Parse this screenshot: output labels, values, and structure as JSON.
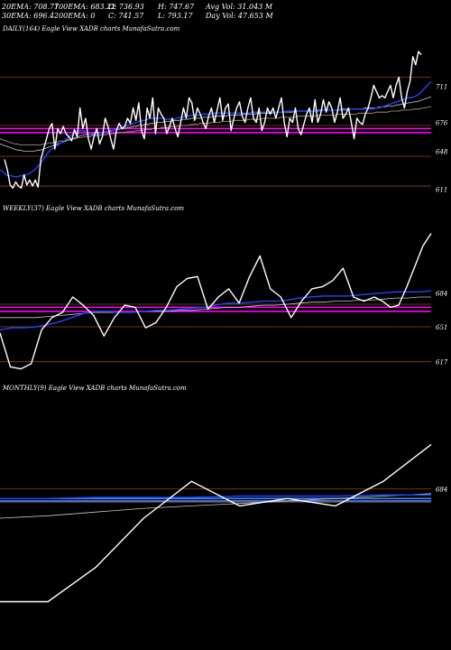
{
  "stats": {
    "row1": [
      "20EMA: 708.77",
      "100EMA: 683.22",
      "O: 736.93",
      "H: 747.67",
      "Avg Vol: 31.043 M"
    ],
    "row2": [
      "30EMA: 696.4",
      "200EMA: 0",
      "C: 741.57",
      "L: 793.17",
      "Day Vol: 47.653 M"
    ]
  },
  "colors": {
    "background": "#000000",
    "price": "#ffffff",
    "ema_fast": "#2244ff",
    "ema_slow": "#c8c8c8",
    "ema_slow2": "#b4a08c",
    "support": "#ff00ff",
    "level_line": "#8b4513"
  },
  "chart_data": [
    {
      "type": "line",
      "title": "DAILY(164) Eagle  View  XADB charts MunafaSutra.com",
      "ylim": [
        600,
        760
      ],
      "yticks": [
        "711",
        "676",
        "648",
        "611"
      ],
      "tick_values": [
        711,
        676,
        648,
        611
      ],
      "levels": [
        720,
        673,
        643,
        614
      ],
      "support": [
        670,
        666
      ],
      "grid": false,
      "series": [
        {
          "role": "price",
          "values": [
            640,
            630,
            615,
            612,
            618,
            614,
            612,
            625,
            615,
            620,
            614,
            620,
            613,
            640,
            650,
            660,
            670,
            675,
            650,
            670,
            665,
            672,
            665,
            662,
            658,
            669,
            662,
            690,
            670,
            680,
            660,
            650,
            662,
            670,
            655,
            662,
            680,
            672,
            660,
            650,
            668,
            675,
            670,
            672,
            680,
            675,
            690,
            678,
            695,
            668,
            660,
            690,
            680,
            700,
            665,
            690,
            684,
            680,
            665,
            672,
            680,
            670,
            662,
            676,
            690,
            680,
            700,
            695,
            678,
            690,
            684,
            676,
            670,
            682,
            690,
            676,
            688,
            700,
            678,
            690,
            694,
            668,
            680,
            690,
            696,
            682,
            676,
            690,
            700,
            680,
            676,
            690,
            668,
            676,
            690,
            684,
            690,
            680,
            690,
            700,
            676,
            662,
            680,
            676,
            690,
            670,
            664,
            674,
            684,
            690,
            676,
            698,
            676,
            684,
            698,
            686,
            696,
            690,
            676,
            686,
            700,
            680,
            684,
            690,
            676,
            660,
            680,
            676,
            674,
            684,
            690,
            700,
            712,
            706,
            700,
            702,
            700,
            706,
            712,
            700,
            712,
            720,
            700,
            690,
            706,
            716,
            740,
            732,
            745,
            742
          ]
        },
        {
          "role": "ema_fast",
          "values": [
            630,
            628,
            625,
            624,
            624,
            623,
            623,
            624,
            624,
            625,
            626,
            628,
            630,
            633,
            636,
            640,
            644,
            648,
            650,
            652,
            654,
            656,
            658,
            660,
            662,
            664,
            666,
            668,
            668,
            668,
            666,
            664,
            664,
            665,
            665,
            666,
            667,
            667,
            667,
            668,
            669,
            670,
            671,
            672,
            673,
            674,
            675,
            676,
            677,
            678,
            678,
            679,
            680,
            680,
            680,
            680,
            680,
            679,
            679,
            679,
            679,
            680,
            681,
            681,
            682,
            682,
            683,
            683,
            683,
            683,
            684,
            684,
            684,
            684,
            685,
            685,
            685,
            685,
            685,
            685,
            685,
            685,
            685,
            685,
            685,
            685,
            685,
            686,
            686,
            686,
            686,
            686,
            686,
            686,
            686,
            686,
            686,
            686,
            686,
            687,
            687,
            687,
            687,
            687,
            687,
            687,
            687,
            687,
            687,
            687,
            687,
            687,
            688,
            688,
            688,
            688,
            688,
            688,
            688,
            688,
            688,
            689,
            689,
            689,
            689,
            689,
            689,
            689,
            689,
            689,
            690,
            690,
            691,
            692,
            693,
            694,
            695,
            696,
            697,
            698,
            699,
            700,
            700,
            701,
            702,
            704,
            707,
            710,
            713,
            716
          ]
        },
        {
          "role": "ema_slow",
          "values": [
            655,
            654,
            653,
            652,
            651,
            650,
            649,
            649,
            648,
            648,
            648,
            648,
            648,
            649,
            649,
            650,
            651,
            652,
            653,
            654,
            655,
            656,
            657,
            658,
            659,
            660,
            661,
            662,
            663,
            664,
            664,
            664,
            665,
            665,
            666,
            666,
            667,
            667,
            668,
            668,
            669,
            669,
            670,
            670,
            671,
            671,
            672,
            672,
            673,
            673,
            674,
            674,
            675,
            675,
            676,
            676,
            676,
            677,
            677,
            677,
            678,
            678,
            678,
            679,
            679,
            679,
            680,
            680,
            680,
            680,
            681,
            681,
            681,
            681,
            682,
            682,
            682,
            682,
            682,
            683,
            683,
            683,
            683,
            683,
            684,
            684,
            684,
            684,
            684,
            685,
            685,
            685,
            685,
            685,
            685,
            686,
            686,
            686,
            686,
            686,
            686,
            686,
            687,
            687,
            687,
            687,
            687,
            687,
            687,
            687,
            688,
            688,
            688,
            688,
            688,
            688,
            688,
            688,
            689,
            689,
            689,
            689,
            689,
            689,
            689,
            689,
            690,
            690,
            690,
            690,
            690,
            691,
            691,
            691,
            692,
            692,
            692,
            693,
            693,
            694,
            694,
            695,
            695,
            696,
            696,
            697,
            698,
            699,
            700,
            701
          ]
        },
        {
          "role": "ema_slow2",
          "values": [
            660,
            659,
            658,
            657,
            656,
            655,
            655,
            654,
            654,
            654,
            654,
            654,
            654,
            654,
            654,
            655,
            655,
            656,
            656,
            657,
            657,
            658,
            658,
            659,
            659,
            660,
            660,
            661,
            661,
            662,
            662,
            662,
            663,
            663,
            663,
            664,
            664,
            664,
            665,
            665,
            665,
            666,
            666,
            666,
            667,
            667,
            667,
            668,
            668,
            668,
            669,
            669,
            669,
            670,
            670,
            670,
            671,
            671,
            671,
            672,
            672,
            672,
            673,
            673,
            673,
            673,
            674,
            674,
            674,
            675,
            675,
            675,
            675,
            676,
            676,
            676,
            676,
            677,
            677,
            677,
            677,
            678,
            678,
            678,
            678,
            678,
            679,
            679,
            679,
            679,
            679,
            680,
            680,
            680,
            680,
            680,
            680,
            681,
            681,
            681,
            681,
            681,
            681,
            682,
            682,
            682,
            682,
            682,
            682,
            682,
            683,
            683,
            683,
            683,
            683,
            683,
            683,
            684,
            684,
            684,
            684,
            684,
            684,
            684,
            685,
            685,
            685,
            685,
            685,
            685,
            686,
            686,
            686,
            686,
            686,
            687,
            687,
            687,
            687,
            688,
            688,
            688,
            688,
            689,
            689,
            689,
            690,
            690,
            691,
            691
          ]
        }
      ]
    },
    {
      "type": "line",
      "title": "WEEKLY(37) Eagle  View  XADB charts MunafaSutra.com",
      "ylim": [
        600,
        760
      ],
      "yticks": [
        "684",
        "651",
        "617"
      ],
      "tick_values": [
        684,
        651,
        617
      ],
      "levels": [
        673,
        651,
        617
      ],
      "support": [
        670,
        666
      ],
      "grid": false,
      "series": [
        {
          "role": "price",
          "values": [
            645,
            612,
            610,
            615,
            648,
            660,
            665,
            680,
            672,
            662,
            642,
            660,
            672,
            670,
            650,
            655,
            670,
            690,
            698,
            700,
            668,
            680,
            688,
            674,
            700,
            720,
            688,
            680,
            660,
            676,
            688,
            690,
            696,
            708,
            680,
            676,
            680
          ]
        },
        {
          "role": "price_tail",
          "values": [
            680,
            676,
            670,
            672,
            690,
            710,
            730,
            742
          ]
        },
        {
          "role": "ema_fast",
          "values": [
            648,
            650,
            650,
            651,
            653,
            656,
            660,
            664,
            666,
            666,
            665,
            665,
            666,
            667,
            667,
            668,
            669,
            670,
            672,
            674,
            674,
            675,
            676,
            676,
            677,
            679,
            680,
            681,
            681,
            681,
            682,
            683,
            684,
            685,
            685,
            685,
            686
          ]
        },
        {
          "role": "ema_slow",
          "values": [
            660,
            660,
            660,
            660,
            661,
            662,
            663,
            664,
            665,
            665,
            665,
            665,
            666,
            666,
            666,
            667,
            667,
            668,
            669,
            670,
            670,
            671,
            672,
            672,
            673,
            674,
            675,
            675,
            676,
            676,
            677,
            677,
            678,
            679,
            679,
            680,
            680
          ]
        }
      ]
    },
    {
      "type": "line",
      "title": "MONTHLY(9) Eagle  View  XADB charts MunafaSutra.com",
      "ylim": [
        560,
        760
      ],
      "yticks": [
        "684"
      ],
      "tick_values": [
        684
      ],
      "levels": [
        684,
        673
      ],
      "support": [
        676,
        674
      ],
      "grid": false,
      "series": [
        {
          "role": "price",
          "values": [
            592,
            592,
            620,
            660,
            690,
            670,
            676,
            670,
            690,
            720
          ]
        },
        {
          "role": "ema_fast",
          "values": [
            676,
            676,
            677,
            677,
            677,
            678,
            678,
            678,
            679,
            679
          ]
        },
        {
          "role": "ema_slow",
          "values": [
            660,
            662,
            665,
            668,
            670,
            672,
            674,
            676,
            678,
            680
          ]
        }
      ]
    }
  ]
}
